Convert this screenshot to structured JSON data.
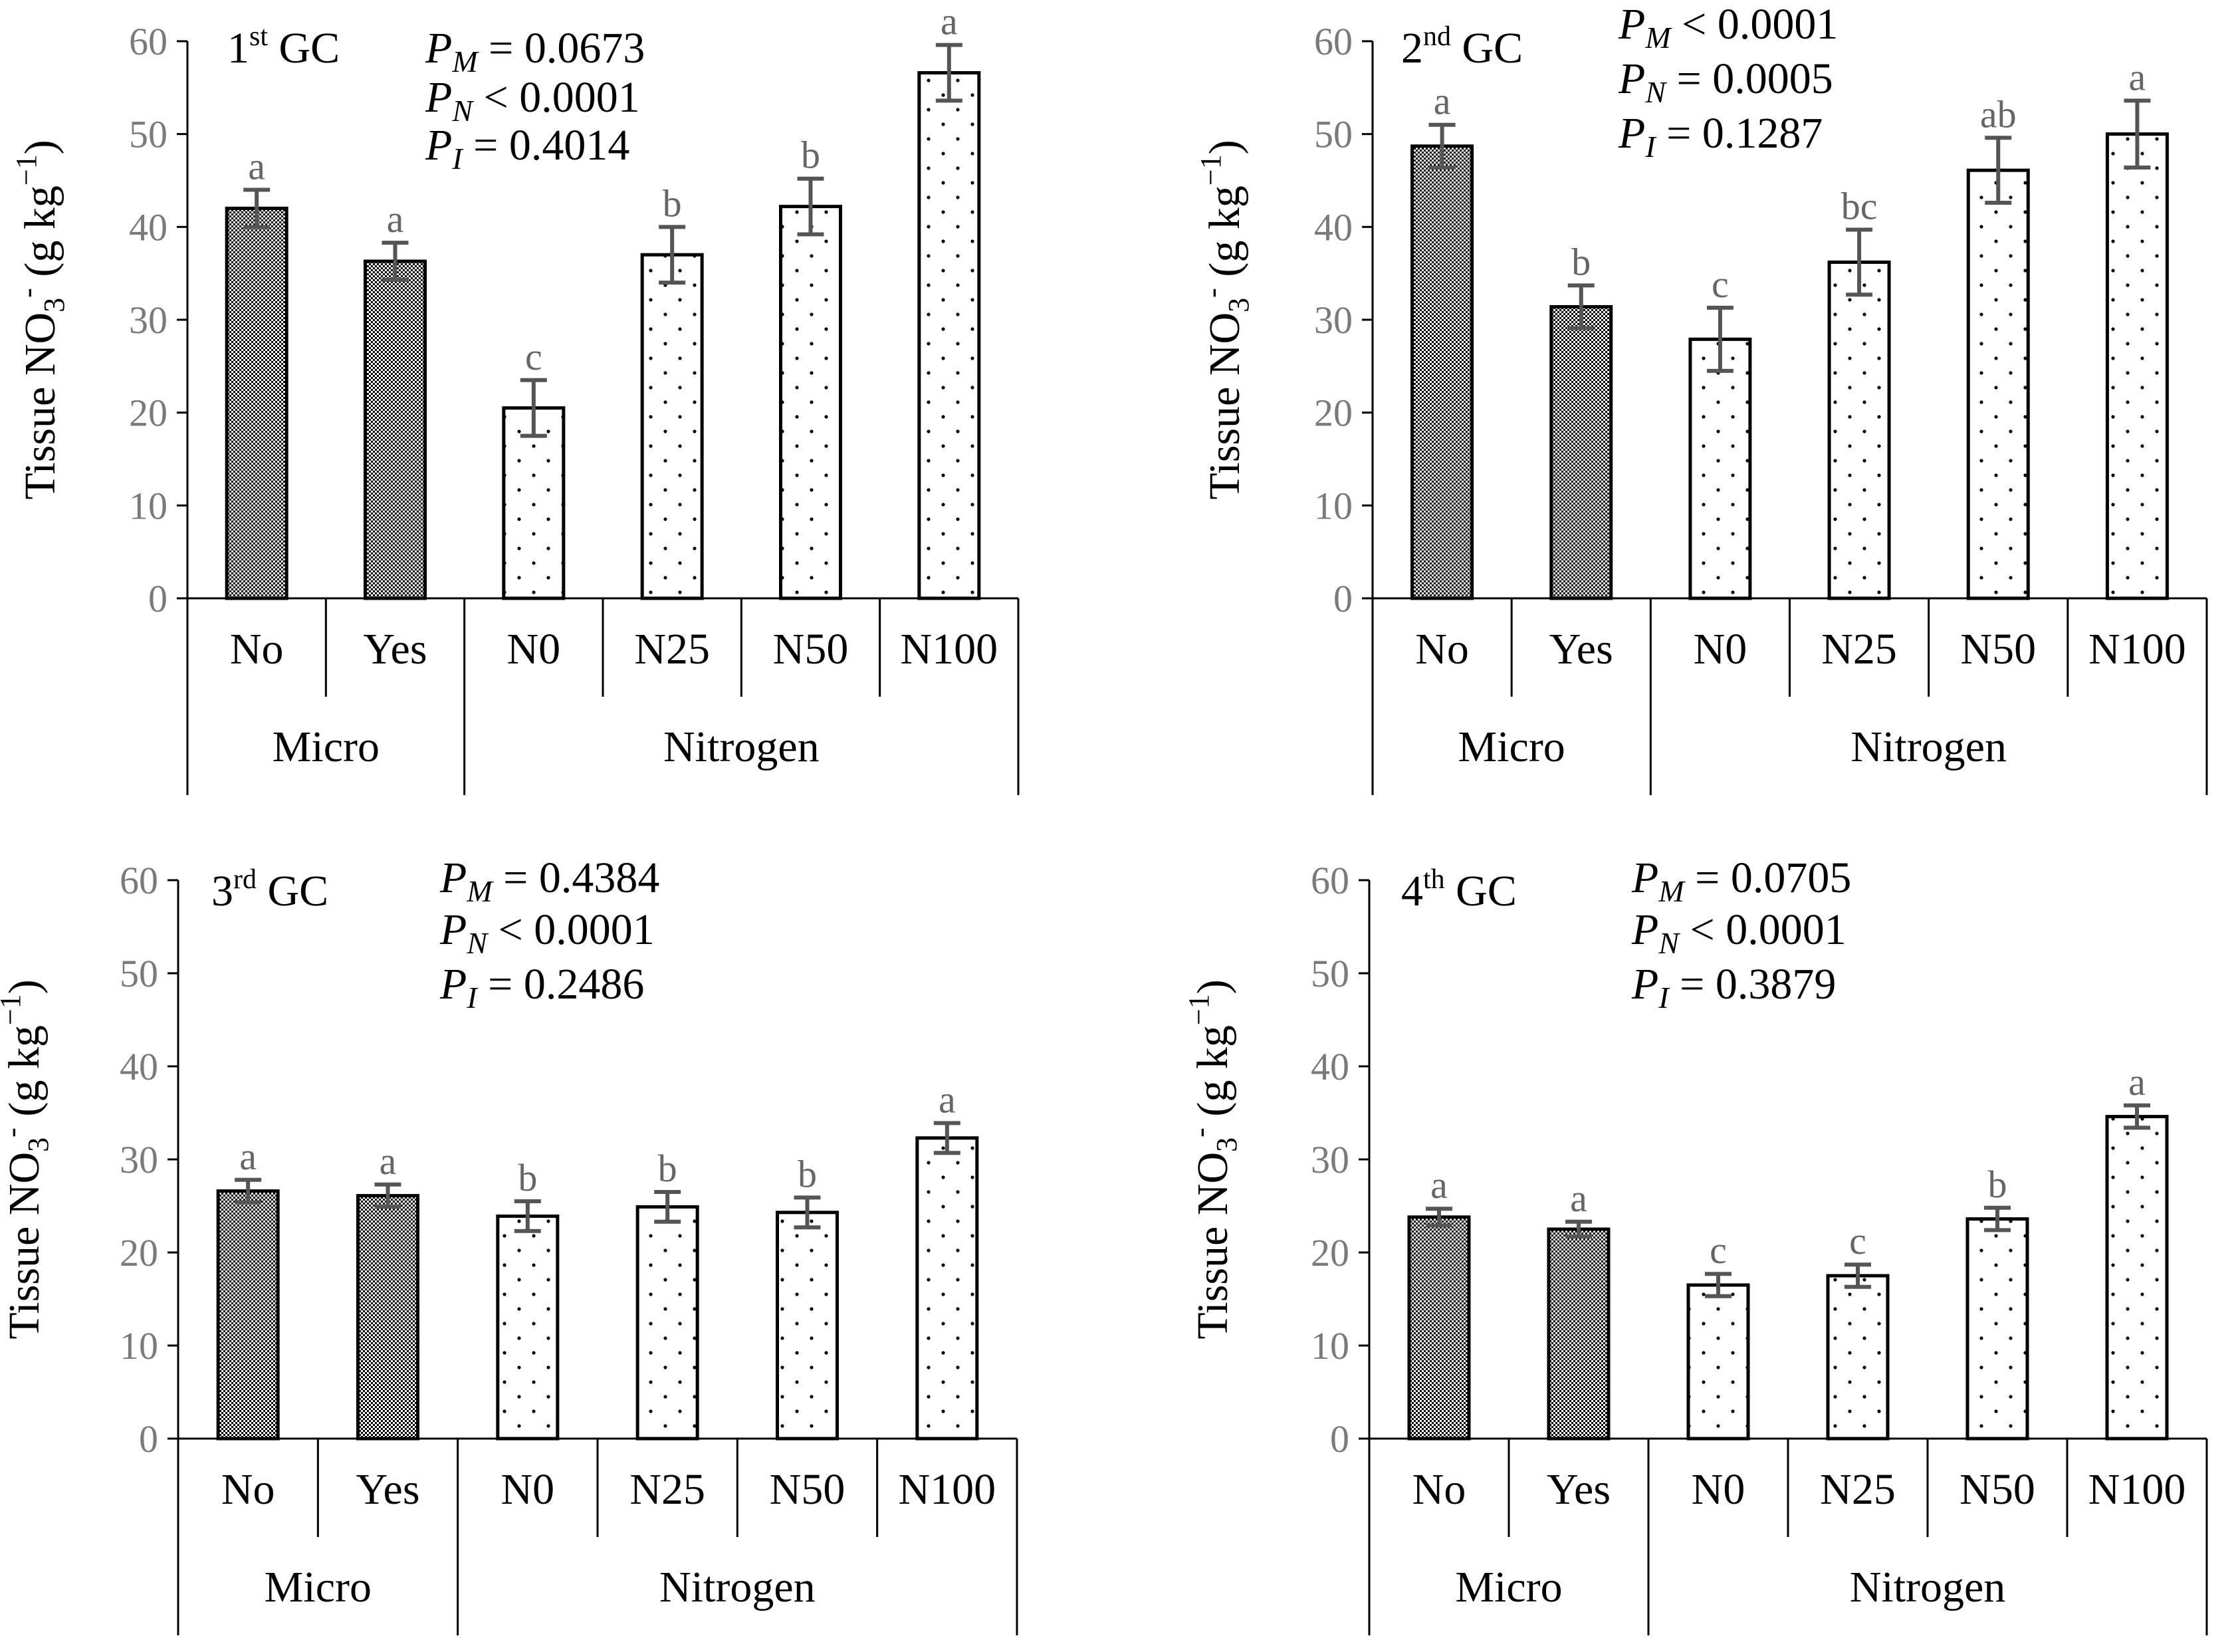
{
  "y_axis_label": {
    "main": "Tissue NO",
    "sub": "3",
    "sup": "-",
    "unit_open": " (g kg",
    "unit_sup": "−1",
    "unit_close": ")"
  },
  "group_labels": [
    "Micro",
    "Nitrogen"
  ],
  "colors": {
    "axis": "#000000",
    "error_bar": "#555555",
    "tick_text": "#7a7a7a",
    "letter_text": "#666666"
  },
  "chart_data": [
    {
      "type": "bar",
      "title": {
        "ordinal": "1",
        "sup": "st",
        "suffix": " GC"
      },
      "pvalues": [
        {
          "sym": "P",
          "sub": "M",
          "op": " = ",
          "val": "0.0673"
        },
        {
          "sym": "P",
          "sub": "N",
          "op": " < ",
          "val": "0.0001"
        },
        {
          "sym": "P",
          "sub": "I",
          "op": " = ",
          "val": "0.4014"
        }
      ],
      "categories": [
        "No",
        "Yes",
        "N0",
        "N25",
        "N50",
        "N100"
      ],
      "groups": [
        {
          "name": "Micro",
          "categories": [
            "No",
            "Yes"
          ],
          "pattern": "checker"
        },
        {
          "name": "Nitrogen",
          "categories": [
            "N0",
            "N25",
            "N50",
            "N100"
          ],
          "pattern": "dots"
        }
      ],
      "values": [
        42.0,
        36.3,
        20.5,
        37.0,
        42.2,
        56.6
      ],
      "errors": [
        2.0,
        2.0,
        3.0,
        3.0,
        3.0,
        3.0
      ],
      "letters": [
        "a",
        "a",
        "c",
        "b",
        "b",
        "a"
      ],
      "ylim": [
        0,
        60
      ],
      "yticks": [
        "0",
        "10",
        "20",
        "30",
        "40",
        "50",
        "60"
      ]
    },
    {
      "type": "bar",
      "title": {
        "ordinal": "2",
        "sup": "nd",
        "suffix": " GC"
      },
      "pvalues": [
        {
          "sym": "P",
          "sub": "M",
          "op": " < ",
          "val": "0.0001"
        },
        {
          "sym": "P",
          "sub": "N",
          "op": " = ",
          "val": "0.0005"
        },
        {
          "sym": "P",
          "sub": "I",
          "op": " = ",
          "val": "0.1287"
        }
      ],
      "categories": [
        "No",
        "Yes",
        "N0",
        "N25",
        "N50",
        "N100"
      ],
      "groups": [
        {
          "name": "Micro",
          "categories": [
            "No",
            "Yes"
          ],
          "pattern": "checker"
        },
        {
          "name": "Nitrogen",
          "categories": [
            "N0",
            "N25",
            "N50",
            "N100"
          ],
          "pattern": "dots"
        }
      ],
      "values": [
        48.7,
        31.4,
        27.9,
        36.2,
        46.1,
        50.0
      ],
      "errors": [
        2.3,
        2.3,
        3.4,
        3.5,
        3.5,
        3.6
      ],
      "letters": [
        "a",
        "b",
        "c",
        "bc",
        "ab",
        "a"
      ],
      "ylim": [
        0,
        60
      ],
      "yticks": [
        "0",
        "10",
        "20",
        "30",
        "40",
        "50",
        "60"
      ]
    },
    {
      "type": "bar",
      "title": {
        "ordinal": "3",
        "sup": "rd",
        "suffix": " GC"
      },
      "pvalues": [
        {
          "sym": "P",
          "sub": "M",
          "op": " = ",
          "val": "0.4384"
        },
        {
          "sym": "P",
          "sub": "N",
          "op": " < ",
          "val": "0.0001"
        },
        {
          "sym": "P",
          "sub": "I",
          "op": " = ",
          "val": "0.2486"
        }
      ],
      "categories": [
        "No",
        "Yes",
        "N0",
        "N25",
        "N50",
        "N100"
      ],
      "groups": [
        {
          "name": "Micro",
          "categories": [
            "No",
            "Yes"
          ],
          "pattern": "checker"
        },
        {
          "name": "Nitrogen",
          "categories": [
            "N0",
            "N25",
            "N50",
            "N100"
          ],
          "pattern": "dots"
        }
      ],
      "values": [
        26.6,
        26.1,
        23.9,
        24.9,
        24.3,
        32.3
      ],
      "errors": [
        1.2,
        1.2,
        1.6,
        1.6,
        1.6,
        1.6
      ],
      "letters": [
        "a",
        "a",
        "b",
        "b",
        "b",
        "a"
      ],
      "ylim": [
        0,
        60
      ],
      "yticks": [
        "0",
        "10",
        "20",
        "30",
        "40",
        "50",
        "60"
      ]
    },
    {
      "type": "bar",
      "title": {
        "ordinal": "4",
        "sup": "th",
        "suffix": " GC"
      },
      "pvalues": [
        {
          "sym": "P",
          "sub": "M",
          "op": " = ",
          "val": "0.0705"
        },
        {
          "sym": "P",
          "sub": "N",
          "op": " < ",
          "val": "0.0001"
        },
        {
          "sym": "P",
          "sub": "I",
          "op": " = ",
          "val": "0.3879"
        }
      ],
      "categories": [
        "No",
        "Yes",
        "N0",
        "N25",
        "N50",
        "N100"
      ],
      "groups": [
        {
          "name": "Micro",
          "categories": [
            "No",
            "Yes"
          ],
          "pattern": "checker"
        },
        {
          "name": "Nitrogen",
          "categories": [
            "N0",
            "N25",
            "N50",
            "N100"
          ],
          "pattern": "dots"
        }
      ],
      "values": [
        23.8,
        22.5,
        16.5,
        17.5,
        23.6,
        34.6
      ],
      "errors": [
        0.9,
        0.8,
        1.2,
        1.2,
        1.2,
        1.2
      ],
      "letters": [
        "a",
        "a",
        "c",
        "c",
        "b",
        "a"
      ],
      "ylim": [
        0,
        60
      ],
      "yticks": [
        "0",
        "10",
        "20",
        "30",
        "40",
        "50",
        "60"
      ]
    }
  ]
}
